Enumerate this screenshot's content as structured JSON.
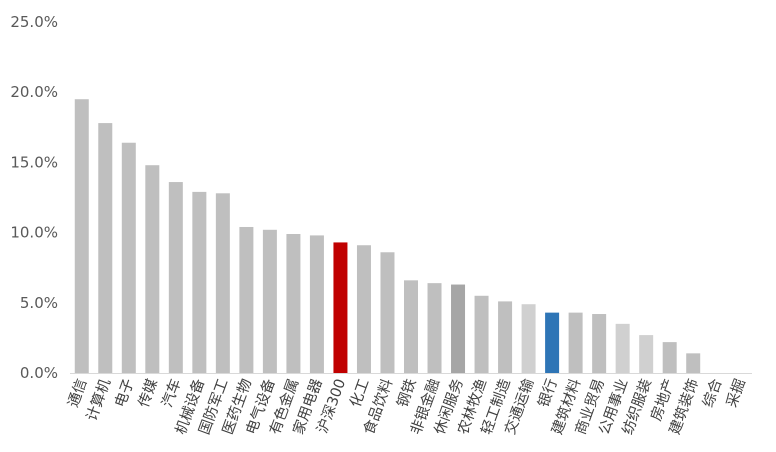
{
  "chart_data": {
    "type": "bar",
    "categories": [
      "通信",
      "计算机",
      "电子",
      "传媒",
      "汽车",
      "机械设备",
      "国防军工",
      "医药生物",
      "电气设备",
      "有色金属",
      "家用电器",
      "沪深300",
      "化工",
      "食品饮料",
      "钢铁",
      "非银金融",
      "休闲服务",
      "农林牧渔",
      "轻工制造",
      "交通运输",
      "银行",
      "建筑材料",
      "商业贸易",
      "公用事业",
      "纺织服装",
      "房地产",
      "建筑装饰",
      "综合",
      "采掘"
    ],
    "values": [
      19.5,
      17.8,
      16.4,
      14.8,
      13.6,
      12.9,
      12.8,
      10.4,
      10.2,
      9.9,
      9.8,
      9.3,
      9.1,
      8.6,
      6.6,
      6.4,
      6.3,
      5.5,
      5.1,
      4.9,
      4.3,
      4.3,
      4.2,
      3.5,
      2.7,
      2.2,
      1.4,
      0.0,
      0.0
    ],
    "colors": [
      "#bfbfbf",
      "#bfbfbf",
      "#bfbfbf",
      "#bfbfbf",
      "#bfbfbf",
      "#bfbfbf",
      "#bfbfbf",
      "#bfbfbf",
      "#bfbfbf",
      "#bfbfbf",
      "#bfbfbf",
      "#c00000",
      "#bfbfbf",
      "#bfbfbf",
      "#bfbfbf",
      "#bfbfbf",
      "#a6a6a6",
      "#bfbfbf",
      "#bfbfbf",
      "#d0d0d0",
      "#2e75b6",
      "#bfbfbf",
      "#bfbfbf",
      "#d0d0d0",
      "#d0d0d0",
      "#bfbfbf",
      "#bfbfbf",
      "#bfbfbf",
      "#bfbfbf"
    ],
    "yticks": [
      "0.0%",
      "5.0%",
      "10.0%",
      "15.0%",
      "20.0%",
      "25.0%"
    ],
    "ylim": [
      0,
      25
    ],
    "grid": false,
    "legend": "none",
    "title": "",
    "xlabel": "",
    "ylabel": ""
  }
}
